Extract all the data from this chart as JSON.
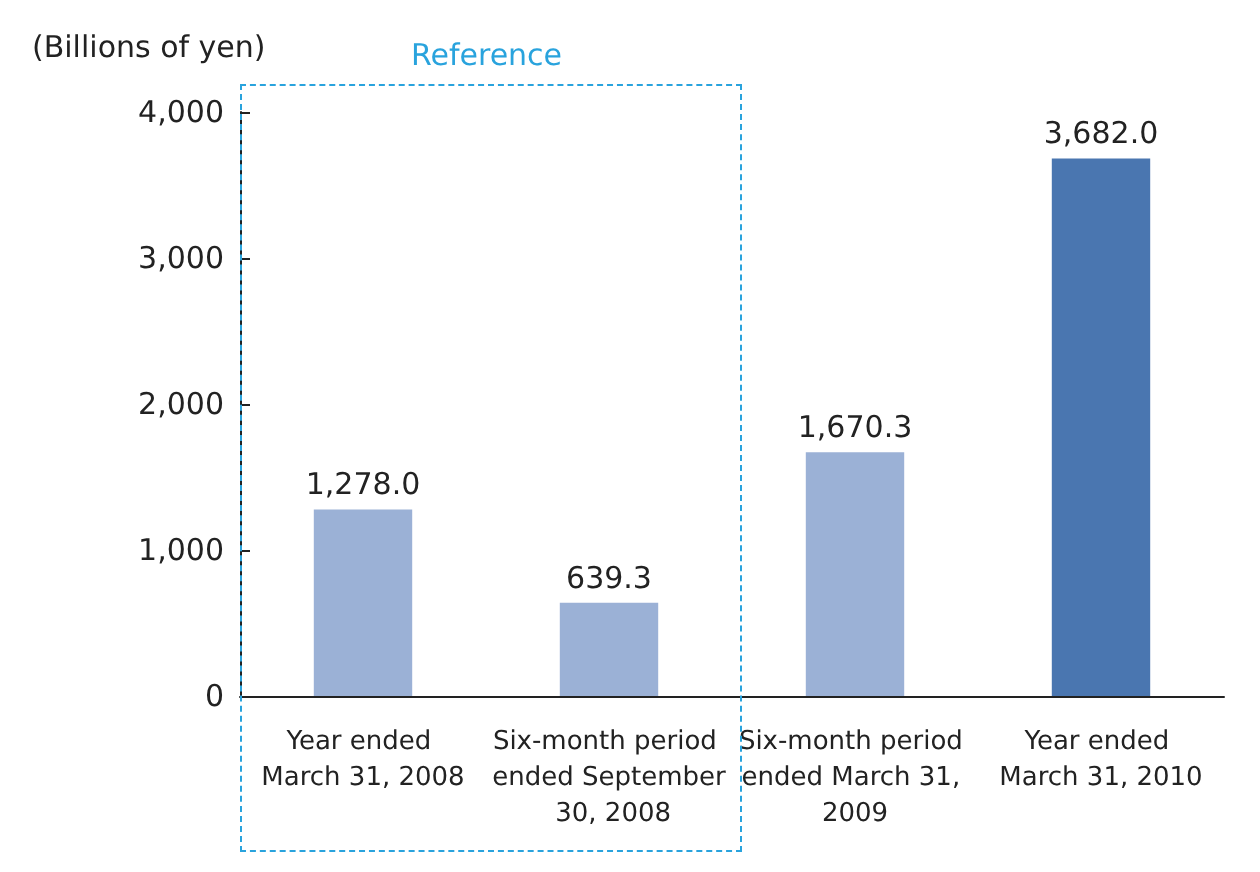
{
  "chart_data": {
    "type": "bar",
    "ylabel": "(Billions of yen)",
    "categories": [
      "Year ended March 31, 2008",
      "Six-month period ended September 30, 2008",
      "Six-month period ended March 31, 2009",
      "Year ended March 31, 2010"
    ],
    "values": [
      1278.0,
      639.3,
      1670.3,
      3682.0
    ],
    "colors": [
      "#9bb1d6",
      "#9bb1d6",
      "#9bb1d6",
      "#4a76b0"
    ],
    "ylim": [
      0,
      4000
    ],
    "yticks": [
      {
        "value": 0,
        "label": "0"
      },
      {
        "value": 1000,
        "label": "1,000"
      },
      {
        "value": 2000,
        "label": "2,000"
      },
      {
        "value": 3000,
        "label": "3,000"
      },
      {
        "value": 4000,
        "label": "4,000"
      }
    ],
    "value_labels": [
      "1,278.0",
      "639.3",
      "1,670.3",
      "3,682.0"
    ],
    "annotations": [
      "Reference"
    ],
    "grid": false
  }
}
